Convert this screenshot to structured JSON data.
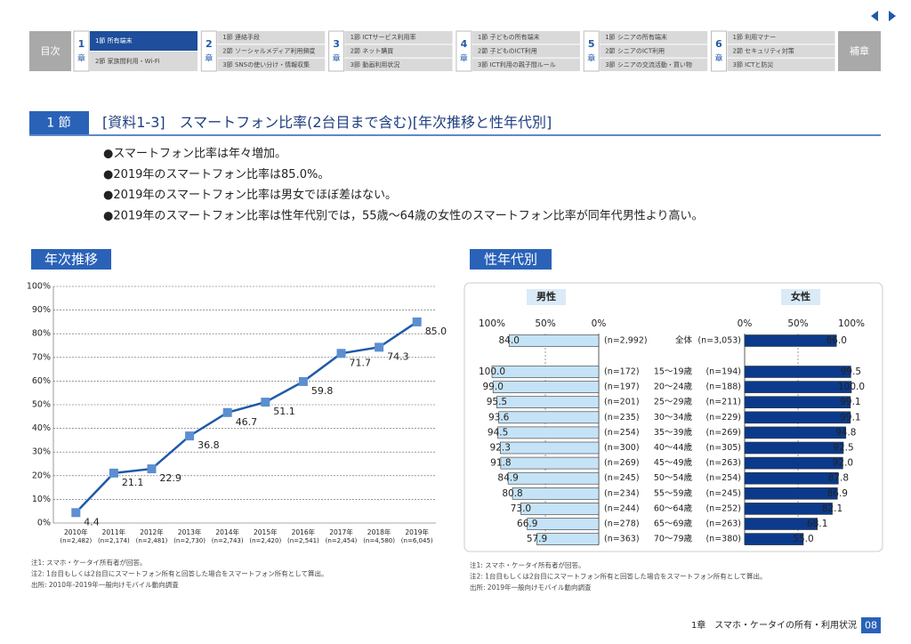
{
  "nav": {
    "toc": "目次",
    "appendix": "補章",
    "chapters": [
      {
        "number": "1",
        "suffix": "章",
        "sections": [
          "1節 所有端末",
          "2節 家族間利用・Wi-Fi"
        ]
      },
      {
        "number": "2",
        "suffix": "章",
        "sections": [
          "1節 連絡手段",
          "2節 ソーシャルメディア利用頻度",
          "3節 SNSの使い分け・情報収集"
        ]
      },
      {
        "number": "3",
        "suffix": "章",
        "sections": [
          "1節 ICTサービス利用率",
          "2節 ネット購買",
          "3節 動画利用状況"
        ]
      },
      {
        "number": "4",
        "suffix": "章",
        "sections": [
          "1節 子どもの所有端末",
          "2節 子どものICT利用",
          "3節 ICT利用の親子間ルール"
        ]
      },
      {
        "number": "5",
        "suffix": "章",
        "sections": [
          "1節 シニアの所有端末",
          "2節 シニアのICT利用",
          "3節 シニアの交流活動・買い物"
        ]
      },
      {
        "number": "6",
        "suffix": "章",
        "sections": [
          "1節 利用マナー",
          "2節 セキュリティ対策",
          "3節 ICTと防災"
        ]
      }
    ]
  },
  "header": {
    "section": "1 節",
    "title": "[資料1-3]　スマートフォン比率(2台目まで含む)[年次推移と性年代別]"
  },
  "bullets": [
    "●スマートフォン比率は年々増加。",
    "●2019年のスマートフォン比率は85.0%。",
    "●2019年のスマートフォン比率は男女でほぼ差はない。",
    "●2019年のスマートフォン比率は性年代別では，55歳～64歳の女性のスマートフォン比率が同年代男性より高い。"
  ],
  "panels": [
    "年次推移",
    "性年代別"
  ],
  "chart_data": [
    {
      "type": "line",
      "categories": [
        "2010年",
        "2011年",
        "2012年",
        "2013年",
        "2014年",
        "2015年",
        "2016年",
        "2017年",
        "2018年",
        "2019年"
      ],
      "category_notes": [
        "(n=2,482)",
        "(n=2,174)",
        "(n=2,481)",
        "(n=2,730)",
        "(n=2,743)",
        "(n=2,420)",
        "(n=2,541)",
        "(n=2,454)",
        "(n=4,580)",
        "(n=6,045)"
      ],
      "values": [
        4.4,
        21.1,
        22.9,
        36.8,
        46.7,
        51.1,
        59.8,
        71.7,
        74.3,
        85.0
      ],
      "value_labels": [
        "4.4",
        "21.1",
        "22.9",
        "36.8",
        "46.7",
        "51.1",
        "59.8",
        "71.7",
        "74.3",
        "85.0"
      ],
      "color": "#1f5aa8",
      "marker_color": "#5b8fd0",
      "ylim": [
        0,
        100
      ],
      "yticks": [
        {
          "value": 0,
          "label": "0%"
        },
        {
          "value": 10,
          "label": "10%"
        },
        {
          "value": 20,
          "label": "20%"
        },
        {
          "value": 30,
          "label": "30%"
        },
        {
          "value": 40,
          "label": "40%"
        },
        {
          "value": 50,
          "label": "50%"
        },
        {
          "value": 60,
          "label": "60%"
        },
        {
          "value": 70,
          "label": "70%"
        },
        {
          "value": 80,
          "label": "80%"
        },
        {
          "value": 90,
          "label": "90%"
        },
        {
          "value": 100,
          "label": "100%"
        }
      ],
      "grid": true
    },
    {
      "type": "bar",
      "categories": [
        "全体",
        "15～19歳",
        "20～24歳",
        "25～29歳",
        "30～34歳",
        "35～39歳",
        "40～44歳",
        "45～49歳",
        "50～54歳",
        "55～59歳",
        "60～64歳",
        "65～69歳",
        "70～79歳"
      ],
      "xlim": [
        0,
        100
      ],
      "xticks": [
        {
          "value": 0,
          "label": "0%"
        },
        {
          "value": 50,
          "label": "50%"
        },
        {
          "value": 100,
          "label": "100%"
        }
      ],
      "series": [
        {
          "name": "男性",
          "color": "#c5e3f7",
          "values": [
            84.0,
            100.0,
            99.0,
            95.5,
            93.6,
            94.5,
            92.3,
            91.8,
            84.9,
            80.8,
            73.0,
            66.9,
            57.9
          ],
          "value_labels": [
            "84.0",
            "100.0",
            "99.0",
            "95.5",
            "93.6",
            "94.5",
            "92.3",
            "91.8",
            "84.9",
            "80.8",
            "73.0",
            "66.9",
            "57.9"
          ],
          "n_labels": [
            "(n=2,992)",
            "(n=172)",
            "(n=197)",
            "(n=201)",
            "(n=235)",
            "(n=254)",
            "(n=300)",
            "(n=269)",
            "(n=245)",
            "(n=234)",
            "(n=244)",
            "(n=278)",
            "(n=363)"
          ]
        },
        {
          "name": "女性",
          "color": "#0b3a8c",
          "values": [
            86.0,
            99.5,
            100.0,
            99.1,
            99.1,
            94.8,
            92.5,
            92.0,
            87.8,
            86.9,
            82.1,
            68.1,
            55.0
          ],
          "value_labels": [
            "86.0",
            "99.5",
            "100.0",
            "99.1",
            "99.1",
            "94.8",
            "92.5",
            "92.0",
            "87.8",
            "86.9",
            "82.1",
            "68.1",
            "55.0"
          ],
          "n_labels": [
            "(n=3,053)",
            "(n=194)",
            "(n=188)",
            "(n=211)",
            "(n=229)",
            "(n=269)",
            "(n=305)",
            "(n=263)",
            "(n=254)",
            "(n=245)",
            "(n=252)",
            "(n=263)",
            "(n=380)"
          ]
        }
      ]
    }
  ],
  "notes": [
    [
      "注1: スマホ・ケータイ所有者が回答。",
      "注2: 1台目もしくは2台目にスマートフォン所有と回答した場合をスマートフォン所有として算出。",
      "出所: 2010年-2019年一般向けモバイル動向調査"
    ],
    [
      "注1: スマホ・ケータイ所有者が回答。",
      "注2: 1台目もしくは2台目にスマートフォン所有と回答した場合をスマートフォン所有として算出。",
      "出所: 2019年一般向けモバイル動向調査"
    ]
  ],
  "footer": {
    "chapter": "1章　スマホ・ケータイの所有・利用状況",
    "page": "08"
  }
}
